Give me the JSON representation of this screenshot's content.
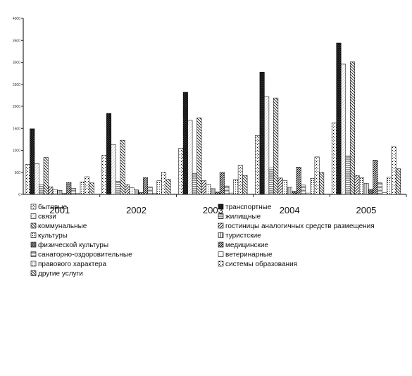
{
  "chart_data": {
    "type": "bar",
    "categories": [
      "2001",
      "2002",
      "2003",
      "2004",
      "2005"
    ],
    "ylim": [
      0,
      4000
    ],
    "yticks": [
      0,
      500,
      1000,
      1500,
      2000,
      2500,
      3000,
      3500,
      4000
    ],
    "grid": false,
    "legend_placement": "bottom",
    "series": [
      {
        "name": "бытовые",
        "pattern": "dots-sparse",
        "values": [
          680,
          890,
          1050,
          1340,
          1620
        ]
      },
      {
        "name": "транспортные",
        "pattern": "crosshatch",
        "values": [
          1490,
          1840,
          2320,
          2780,
          3440
        ]
      },
      {
        "name": "связи",
        "pattern": "solid-light",
        "values": [
          700,
          1130,
          1680,
          2220,
          2960
        ]
      },
      {
        "name": "жилищные",
        "pattern": "hlines",
        "values": [
          220,
          300,
          470,
          600,
          870
        ]
      },
      {
        "name": "коммунальные",
        "pattern": "diag-back",
        "values": [
          840,
          1230,
          1740,
          2190,
          3010
        ]
      },
      {
        "name": "гостиницы аналогичных средств размещения",
        "pattern": "diag-fwd",
        "values": [
          170,
          220,
          310,
          370,
          430
        ]
      },
      {
        "name": "культуры",
        "pattern": "dots",
        "values": [
          110,
          150,
          220,
          310,
          380
        ]
      },
      {
        "name": "туристские",
        "pattern": "vlines",
        "values": [
          90,
          100,
          130,
          160,
          250
        ]
      },
      {
        "name": "физической культуры",
        "pattern": "xcross",
        "values": [
          20,
          40,
          50,
          70,
          110
        ]
      },
      {
        "name": "медицинские",
        "pattern": "diag-dense",
        "values": [
          270,
          380,
          500,
          620,
          780
        ]
      },
      {
        "name": "санаторно-оздоровительные",
        "pattern": "hstripes",
        "values": [
          140,
          170,
          190,
          210,
          260
        ]
      },
      {
        "name": "ветеринарные",
        "pattern": "blank",
        "values": [
          20,
          20,
          30,
          30,
          40
        ]
      },
      {
        "name": "правового характера",
        "pattern": "dots",
        "values": [
          280,
          310,
          340,
          360,
          390
        ]
      },
      {
        "name": "системы образования",
        "pattern": "dots-sparse",
        "values": [
          400,
          500,
          660,
          850,
          1080
        ]
      },
      {
        "name": "другие услуги",
        "pattern": "diag-back",
        "values": [
          260,
          340,
          430,
          500,
          580
        ]
      }
    ]
  }
}
